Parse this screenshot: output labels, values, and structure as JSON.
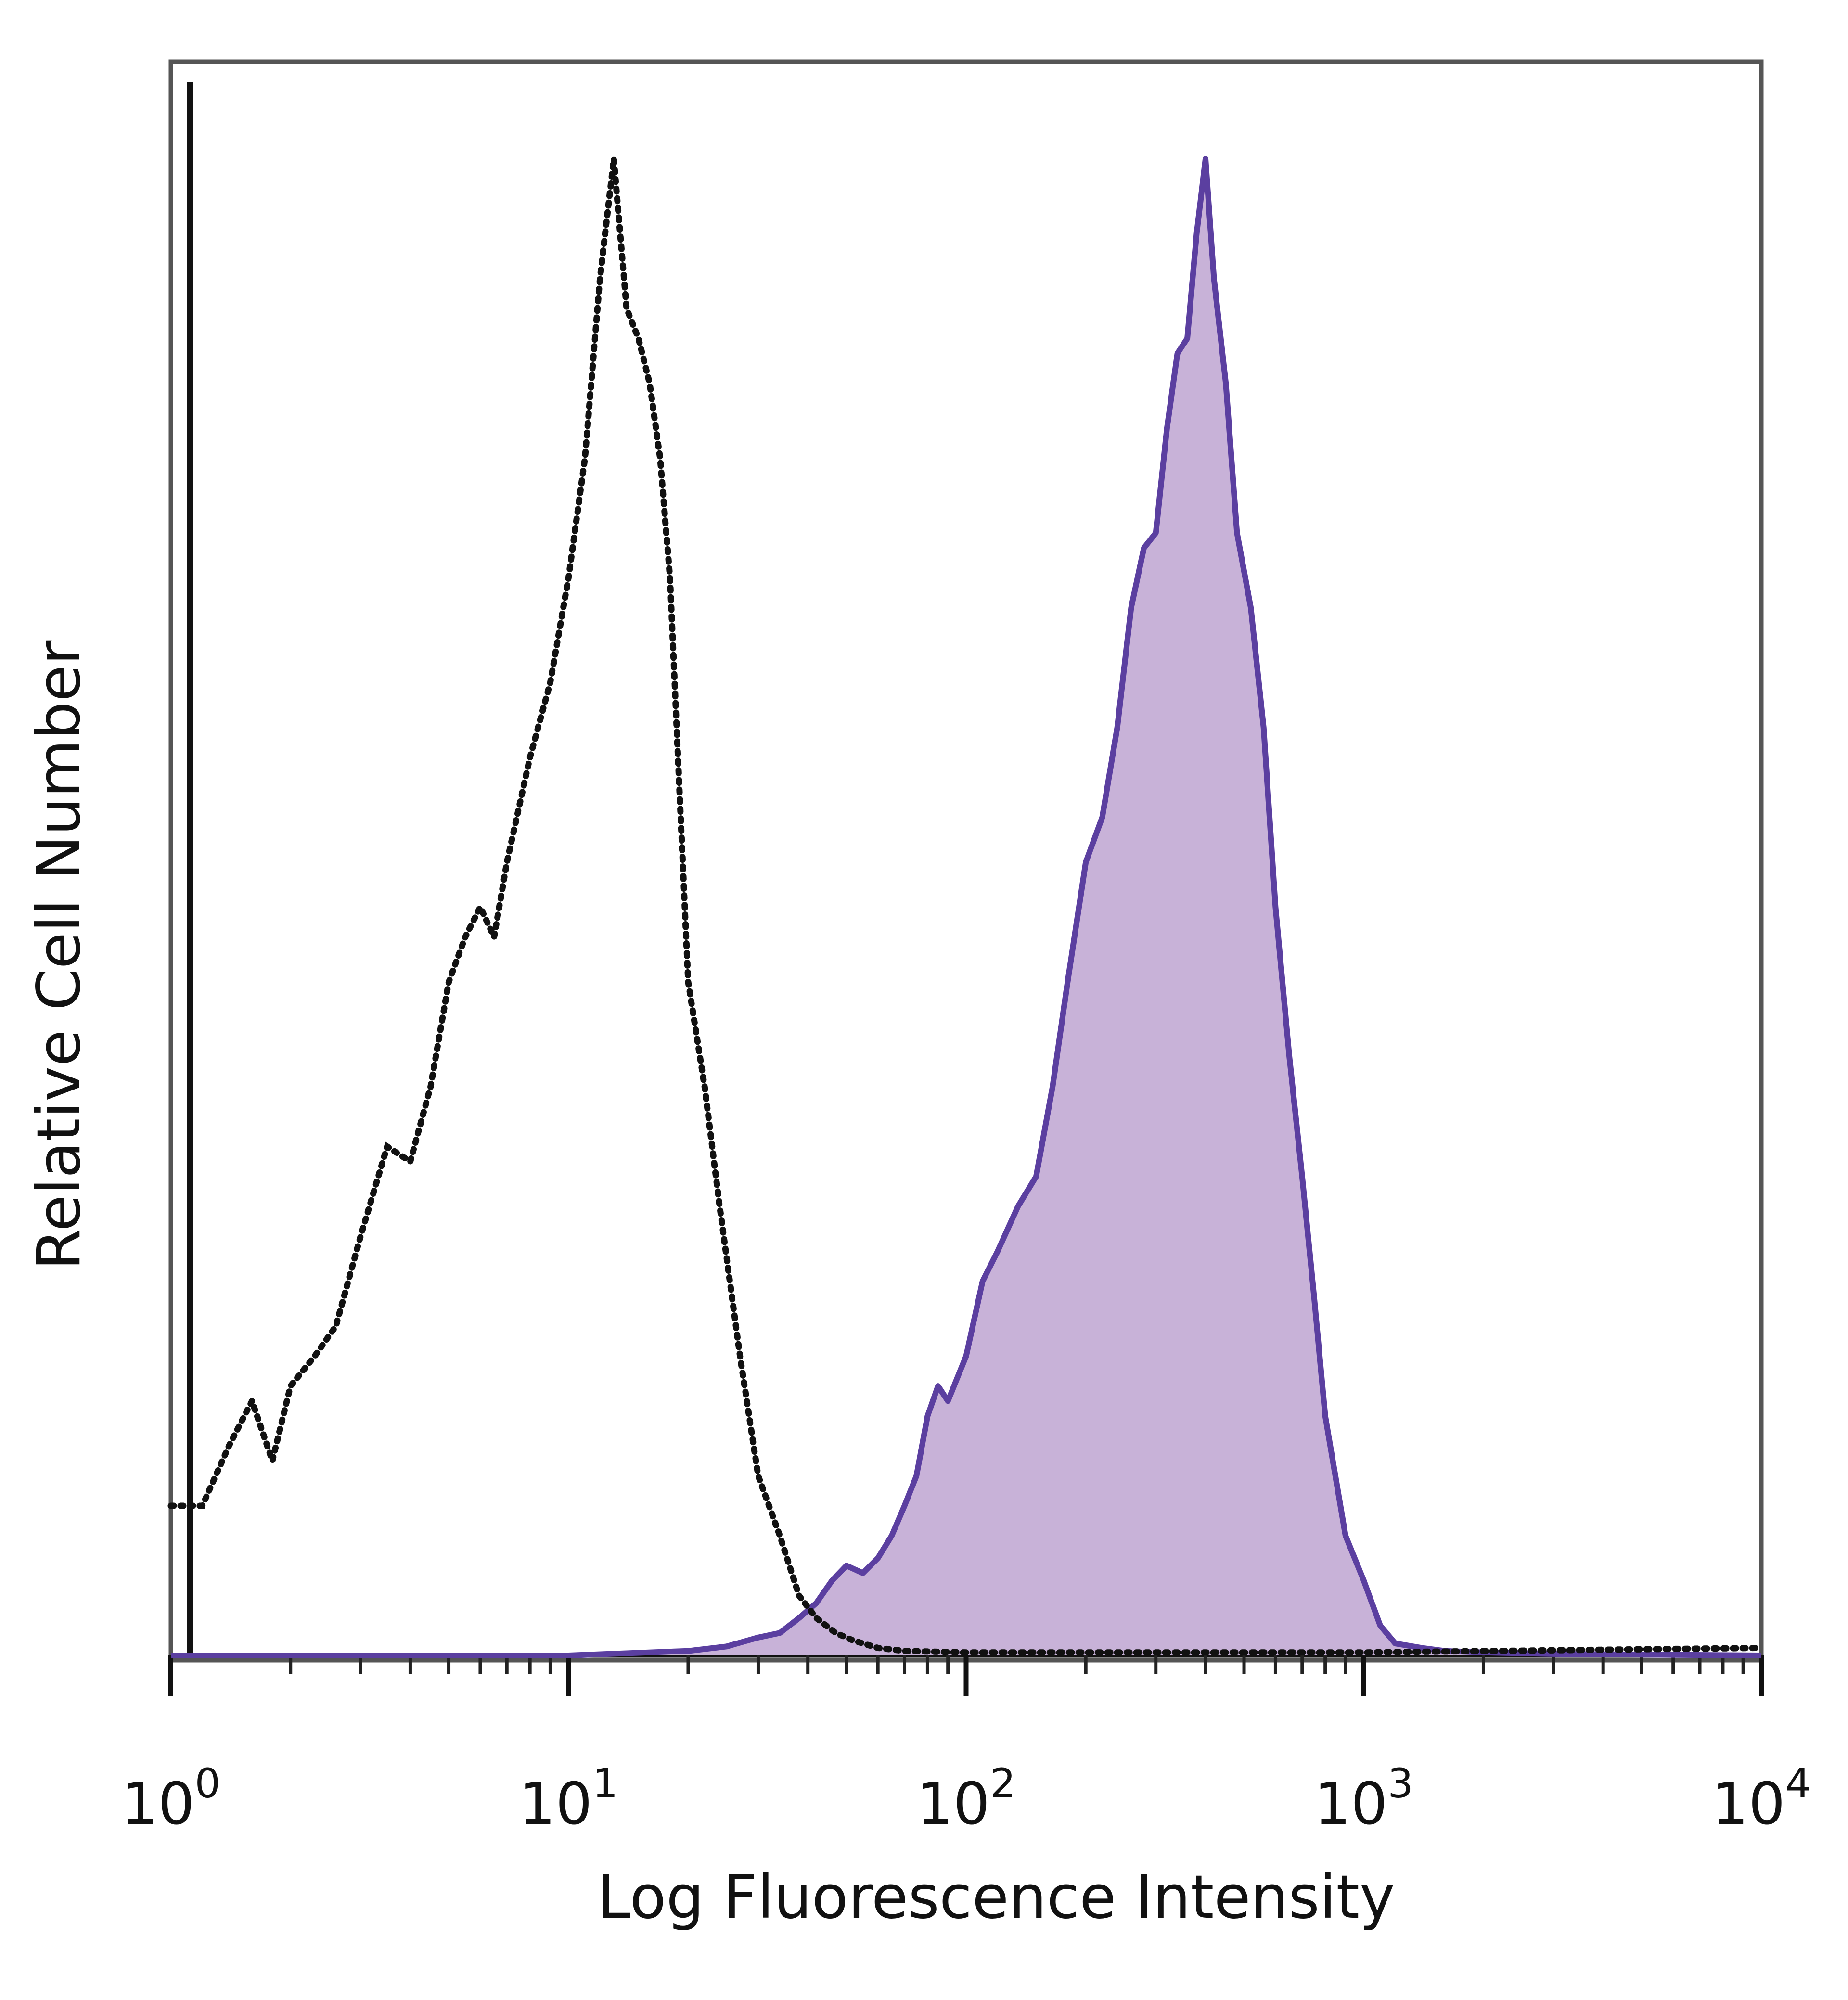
{
  "chart_data": {
    "type": "area",
    "xlabel": "Log Fluorescence Intensity",
    "ylabel": "Relative Cell Number",
    "xscale": "log",
    "xlim": [
      1,
      10000
    ],
    "ylim": [
      0,
      100
    ],
    "x_ticks": [
      {
        "value": 1,
        "base": "10",
        "exp": "0"
      },
      {
        "value": 10,
        "base": "10",
        "exp": "1"
      },
      {
        "value": 100,
        "base": "10",
        "exp": "2"
      },
      {
        "value": 1000,
        "base": "10",
        "exp": "3"
      },
      {
        "value": 10000,
        "base": "10",
        "exp": "4"
      }
    ],
    "grid": false,
    "legend": "none",
    "series": [
      {
        "style": "dotted",
        "color": "#111111",
        "x": [
          1,
          1.2,
          1.4,
          1.6,
          1.8,
          2,
          2.3,
          2.6,
          3,
          3.5,
          4,
          4.5,
          5,
          5.5,
          6,
          6.5,
          7,
          8,
          9,
          10,
          11,
          12,
          13,
          14,
          15,
          16,
          17,
          18,
          19,
          20,
          22,
          24,
          27,
          30,
          34,
          38,
          42,
          47,
          52,
          60,
          70,
          100,
          1000,
          10000
        ],
        "y": [
          10,
          10,
          14,
          17,
          13,
          18,
          20,
          22,
          28,
          34,
          33,
          38,
          45,
          48,
          50,
          48,
          53,
          60,
          65,
          72,
          80,
          92,
          100,
          90,
          88,
          85,
          80,
          72,
          58,
          45,
          38,
          30,
          20,
          12,
          8,
          4,
          2.5,
          1.5,
          1,
          0.5,
          0.3,
          0.2,
          0.2,
          0.5
        ]
      },
      {
        "style": "solid-filled",
        "color": "#5b3fa0",
        "fill": "#c8b2d8",
        "x": [
          1,
          10,
          20,
          25,
          30,
          34,
          38,
          42,
          46,
          50,
          55,
          60,
          65,
          70,
          75,
          80,
          85,
          90,
          100,
          110,
          120,
          135,
          150,
          165,
          180,
          200,
          220,
          240,
          260,
          280,
          300,
          320,
          340,
          360,
          380,
          400,
          420,
          450,
          480,
          520,
          560,
          600,
          650,
          700,
          750,
          800,
          900,
          1000,
          1100,
          1200,
          1400,
          1600,
          2000,
          3000,
          10000
        ],
        "y": [
          0,
          0,
          0.3,
          0.6,
          1.2,
          1.5,
          2.5,
          3.5,
          5,
          6,
          5.5,
          6.5,
          8,
          10,
          12,
          16,
          18,
          17,
          20,
          25,
          27,
          30,
          32,
          38,
          45,
          53,
          56,
          62,
          70,
          74,
          75,
          82,
          87,
          88,
          95,
          100,
          92,
          85,
          75,
          70,
          62,
          50,
          40,
          32,
          24,
          16,
          8,
          5,
          2,
          0.8,
          0.5,
          0.3,
          0.2,
          0.1,
          0
        ]
      }
    ]
  }
}
